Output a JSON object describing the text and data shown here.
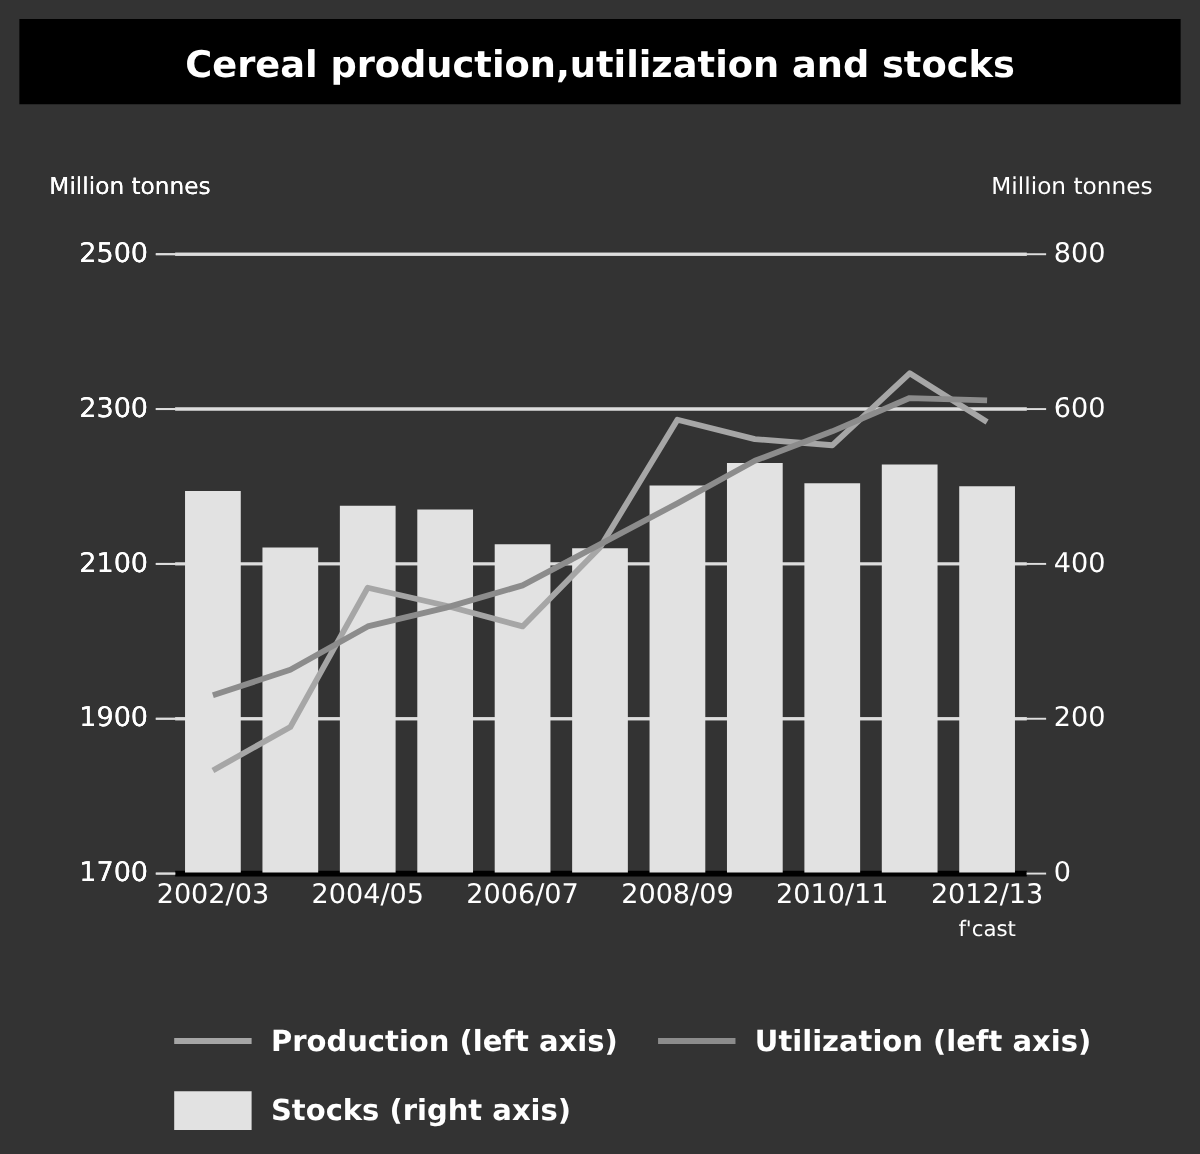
{
  "chart_data": {
    "type": "bar",
    "title": "Cereal production,utilization and stocks",
    "ylabel": "Million tonnes",
    "y2label": "Million tonnes",
    "categories": [
      "2002/03",
      null,
      "2004/05",
      null,
      "2006/07",
      null,
      "2008/09",
      null,
      "2010/11",
      null,
      "2012/13"
    ],
    "series": [
      {
        "name": "Stocks (right axis)",
        "axis": "y2",
        "color": "#e2e2e2",
        "values": [
          493,
          420,
          474,
          469,
          424,
          419,
          500,
          529,
          503,
          527,
          499
        ]
      },
      {
        "name": "Production (left axis)",
        "type": "line",
        "axis": "y",
        "color": "#a6a6a6",
        "values": [
          1832,
          1888,
          2068,
          2045,
          2018,
          2120,
          2285,
          2260,
          2252,
          2345,
          2282
        ]
      },
      {
        "name": "Utilization (left axis)",
        "type": "line",
        "axis": "y",
        "color": "#8c8c8c",
        "values": [
          1929,
          1962,
          2018,
          2042,
          2071,
          2124,
          2177,
          2232,
          2270,
          2313,
          2310
        ]
      }
    ],
    "ylim": [
      1700,
      2500
    ],
    "yticks": [
      1700,
      1900,
      2100,
      2300,
      2500
    ],
    "y2lim": [
      0,
      800
    ],
    "y2ticks": [
      0,
      200,
      400,
      600,
      800
    ],
    "grid": "y",
    "legend": "bottom",
    "annotations": [
      "f'cast"
    ]
  }
}
